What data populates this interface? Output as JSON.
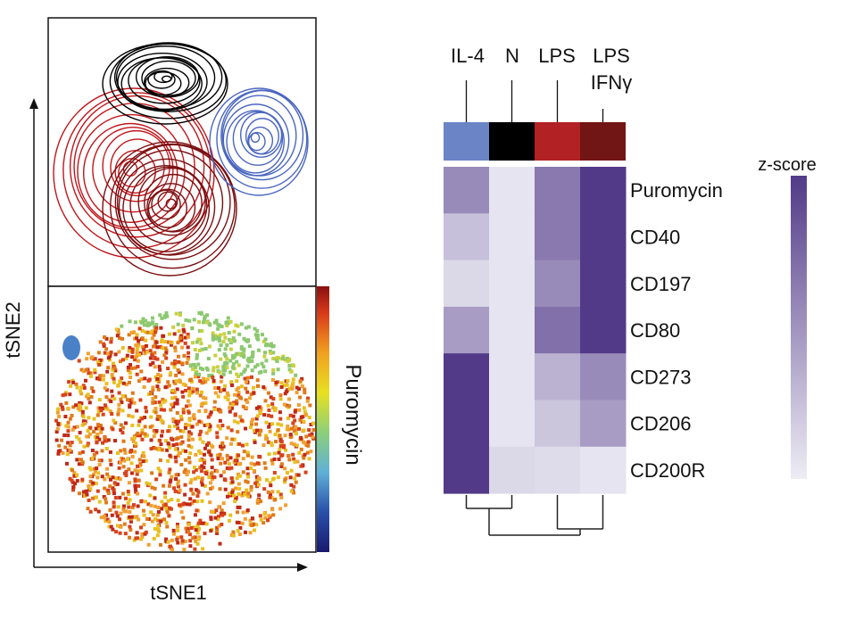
{
  "chart_data": [
    {
      "type": "scatter",
      "title": "",
      "xlabel": "tSNE1",
      "ylabel": "tSNE2",
      "panels": [
        "condition-contours",
        "puromycin-intensity"
      ],
      "colorbar_label": "Puromycin",
      "contour_colors": {
        "IL-4": "#4a66c0",
        "N": "#000000",
        "LPS": "#c0161b",
        "LPS IFNγ": "#7a0e10"
      }
    },
    {
      "type": "heatmap",
      "columns": [
        "IL-4",
        "N",
        "LPS",
        "LPS IFNγ"
      ],
      "column_colors": [
        "#6a84c6",
        "#000000",
        "#b22124",
        "#721515"
      ],
      "rows": [
        "Puromycin",
        "CD40",
        "CD197",
        "CD80",
        "CD273",
        "CD206",
        "CD200R"
      ],
      "values": [
        [
          0.55,
          0.05,
          0.65,
          1.0
        ],
        [
          0.25,
          0.05,
          0.65,
          1.0
        ],
        [
          0.12,
          0.05,
          0.55,
          1.0
        ],
        [
          0.45,
          0.05,
          0.7,
          1.0
        ],
        [
          1.0,
          0.05,
          0.33,
          0.55
        ],
        [
          1.0,
          0.05,
          0.22,
          0.45
        ],
        [
          1.0,
          0.12,
          0.1,
          0.05
        ]
      ],
      "value_range": [
        0,
        1
      ],
      "colorbar_label": "z-score",
      "color_low": "#eeedf5",
      "color_high": "#523a88",
      "dendrogram": "columns: (IL-4, N), (LPS, LPS IFNγ)"
    }
  ]
}
